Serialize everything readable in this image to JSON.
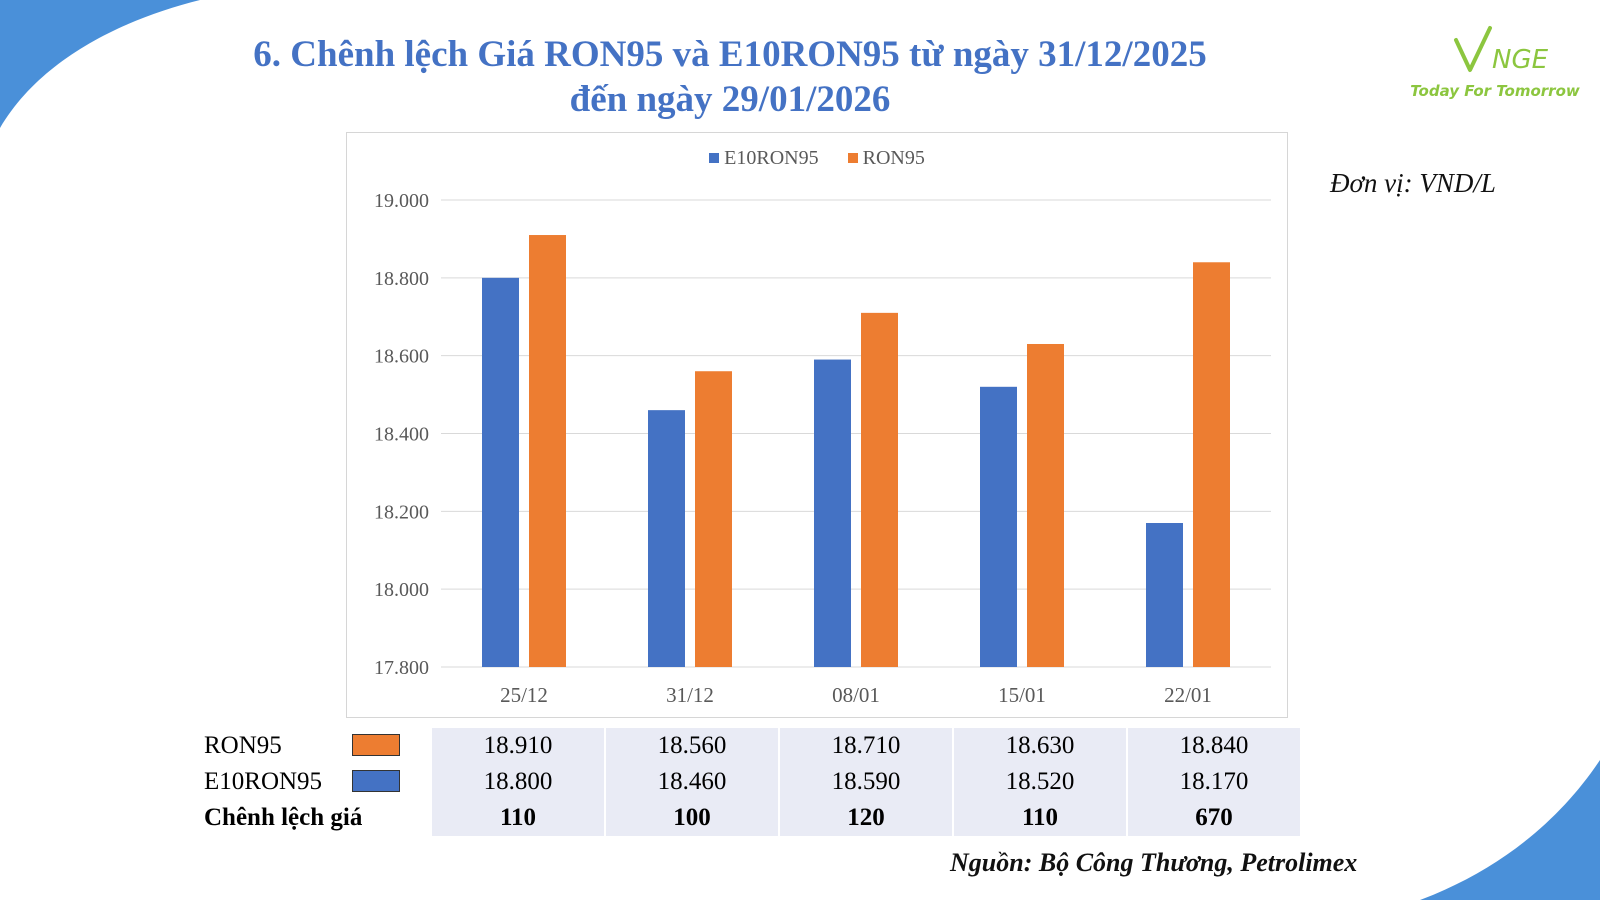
{
  "title_line1": "6. Chênh lệch Giá RON95 và E10RON95 từ ngày 31/12/2025",
  "title_line2": "đến ngày 29/01/2026",
  "logo": {
    "mark": "VNGE",
    "tagline": "Today For Tomorrow"
  },
  "unit_label": "Đơn vị: VND/L",
  "source": "Nguồn: Bộ Công Thương, Petrolimex",
  "colors": {
    "title": "#4472c4",
    "e10": "#4472c4",
    "ron95": "#ed7d31",
    "logo": "#8cc63f",
    "corner": "#4a90d9"
  },
  "chart_data": {
    "type": "bar",
    "categories": [
      "25/12",
      "31/12",
      "08/01",
      "15/01",
      "22/01"
    ],
    "series": [
      {
        "name": "E10RON95",
        "values": [
          18800,
          18460,
          18590,
          18520,
          18170
        ]
      },
      {
        "name": "RON95",
        "values": [
          18910,
          18560,
          18710,
          18630,
          18840
        ]
      }
    ],
    "ylim": [
      17800,
      19000
    ],
    "yticks": [
      "19.000",
      "18.800",
      "18.600",
      "18.400",
      "18.200",
      "18.000",
      "17.800"
    ],
    "legend_position": "top-center",
    "grid": true
  },
  "table": {
    "rows": [
      {
        "label": "RON95",
        "values": [
          "18.910",
          "18.560",
          "18.710",
          "18.630",
          "18.840"
        ]
      },
      {
        "label": "E10RON95",
        "values": [
          "18.800",
          "18.460",
          "18.590",
          "18.520",
          "18.170"
        ]
      },
      {
        "label": "Chênh lệch giá",
        "values": [
          "110",
          "100",
          "120",
          "110",
          "670"
        ]
      }
    ]
  }
}
